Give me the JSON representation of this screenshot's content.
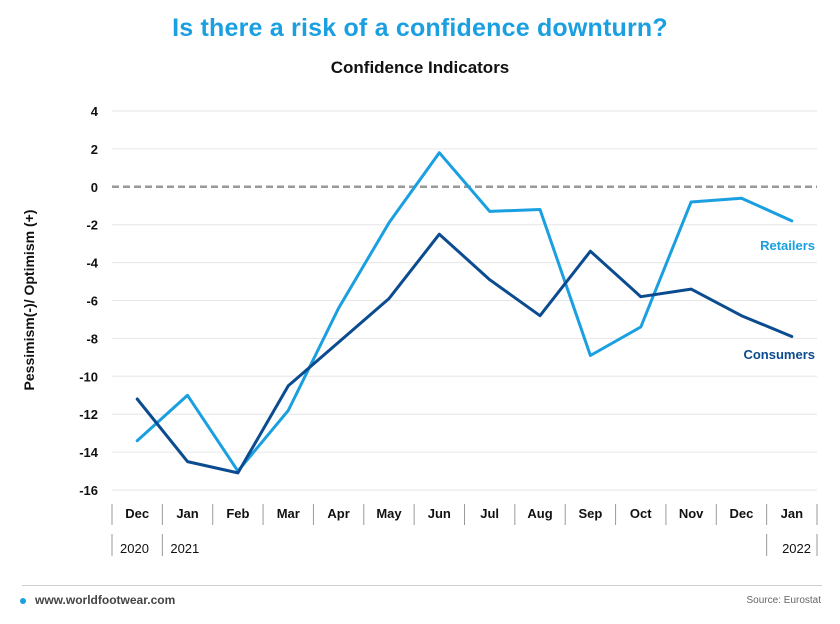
{
  "headline": "Is there a risk of a confidence downturn?",
  "footer": {
    "site": "www.worldfootwear.com",
    "source": "Source: Eurostat"
  },
  "colors": {
    "headline": "#1a9fe0",
    "retailers": "#1a9fe0",
    "consumers": "#0b4b8f",
    "zero_line": "#999999"
  },
  "chart_data": {
    "type": "line",
    "title": "Confidence Indicators",
    "ylabel": "Pessimism(-)/ Optimism (+)",
    "xlabel": "",
    "ylim": [
      -16,
      4
    ],
    "yticks": [
      4,
      2,
      0,
      -2,
      -4,
      -6,
      -8,
      -10,
      -12,
      -14,
      -16
    ],
    "categories": [
      "Dec",
      "Jan",
      "Feb",
      "Mar",
      "Apr",
      "May",
      "Jun",
      "Jul",
      "Aug",
      "Sep",
      "Oct",
      "Nov",
      "Dec",
      "Jan"
    ],
    "years": [
      {
        "label": "2020",
        "start_index": 0,
        "end_index": 0
      },
      {
        "label": "2021",
        "start_index": 1,
        "end_index": 12
      },
      {
        "label": "2022",
        "start_index": 13,
        "end_index": 13
      }
    ],
    "grid": true,
    "zero_line": "dashed",
    "series": [
      {
        "name": "Retailers",
        "color": "#1a9fe0",
        "values": [
          -13.4,
          -11.0,
          -15.0,
          -11.8,
          -6.4,
          -1.9,
          1.8,
          -1.3,
          -1.2,
          -8.9,
          -7.4,
          -0.8,
          -0.6,
          -1.8
        ]
      },
      {
        "name": "Consumers",
        "color": "#0b4b8f",
        "values": [
          -11.2,
          -14.5,
          -15.1,
          -10.5,
          -8.2,
          -5.9,
          -2.5,
          -4.9,
          -6.8,
          -3.4,
          -5.8,
          -5.4,
          -6.8,
          -7.9
        ]
      }
    ]
  }
}
